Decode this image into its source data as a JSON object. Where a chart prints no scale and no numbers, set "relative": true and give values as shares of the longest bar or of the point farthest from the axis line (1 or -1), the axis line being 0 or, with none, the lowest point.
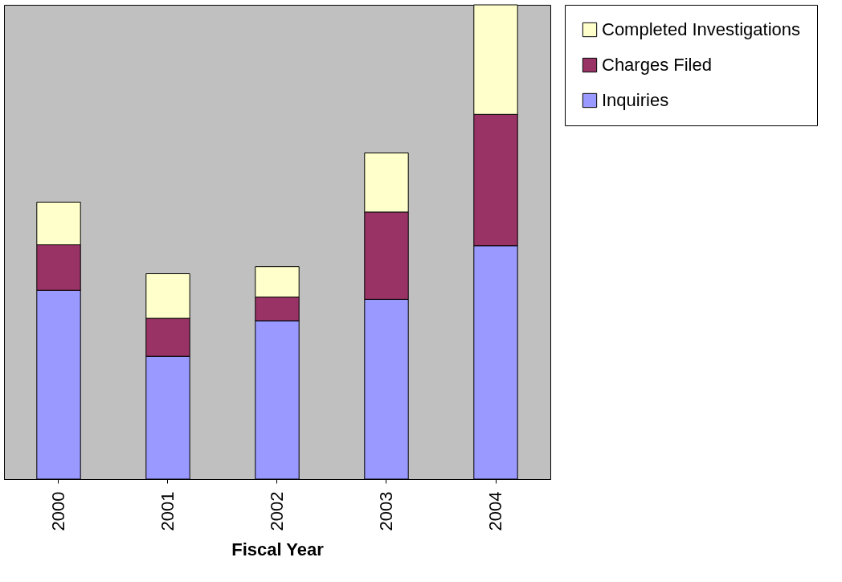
{
  "chart_data": {
    "type": "bar",
    "stacked": true,
    "relative": true,
    "xlabel": "Fiscal Year",
    "categories": [
      "2000",
      "2001",
      "2002",
      "2003",
      "2004"
    ],
    "series": [
      {
        "name": "Inquiries",
        "color": "#9999ff",
        "values": [
          0.398,
          0.259,
          0.334,
          0.379,
          0.492
        ]
      },
      {
        "name": "Charges Filed",
        "color": "#993366",
        "values": [
          0.096,
          0.08,
          0.05,
          0.184,
          0.277
        ]
      },
      {
        "name": "Completed Investigations",
        "color": "#ffffcc",
        "values": [
          0.09,
          0.094,
          0.064,
          0.125,
          0.231
        ]
      }
    ],
    "legend": "right",
    "grid": false
  }
}
